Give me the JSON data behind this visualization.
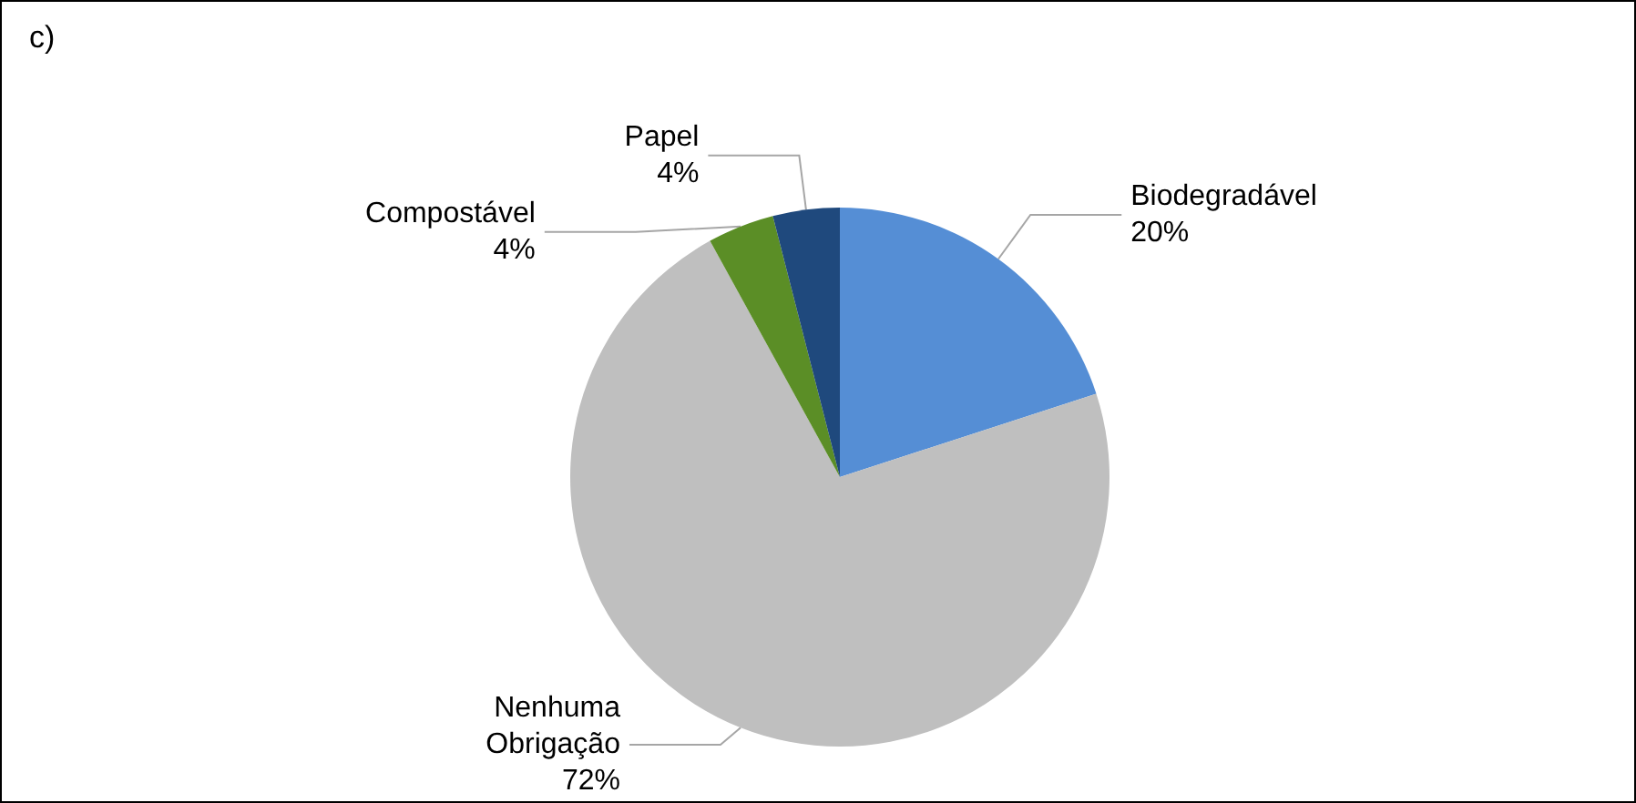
{
  "chart_data": {
    "type": "pie",
    "title": "c)",
    "categories": [
      "Biodegradável",
      "Nenhuma Obrigação",
      "Compostável",
      "Papel"
    ],
    "values": [
      20,
      72,
      4,
      4
    ],
    "colors": [
      "#558ed5",
      "#bfbfbf",
      "#5b8e26",
      "#1f497d"
    ],
    "value_labels": [
      "20%",
      "72%",
      "4%",
      "4%"
    ],
    "legend": false
  }
}
